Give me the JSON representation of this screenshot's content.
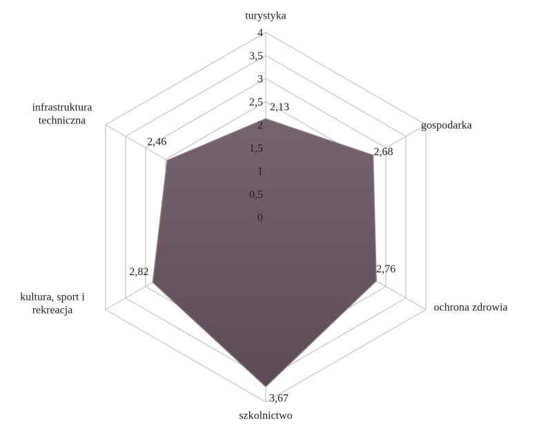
{
  "chart_data": {
    "type": "radar",
    "categories": [
      "turystyka",
      "gospodarka",
      "ochrona zdrowia",
      "szkolnictwo",
      "kultura, sport i\nrekreacja",
      "infrastruktura\ntechniczna"
    ],
    "values": [
      2.13,
      2.68,
      2.76,
      3.67,
      2.82,
      2.46
    ],
    "value_labels": [
      "2,13",
      "2,68",
      "2,76",
      "3,67",
      "2,82",
      "2,46"
    ],
    "color": "#6f5b65",
    "ylim": [
      0,
      4
    ],
    "yticks": [
      0,
      {
        "value": 0.5,
        "label": "0,5"
      },
      1,
      {
        "value": 1.5,
        "label": "1,5"
      },
      2,
      {
        "value": 2.5,
        "label": "2,5"
      },
      3,
      {
        "value": 3.5,
        "label": "3,5"
      },
      4
    ],
    "grid": true
  }
}
